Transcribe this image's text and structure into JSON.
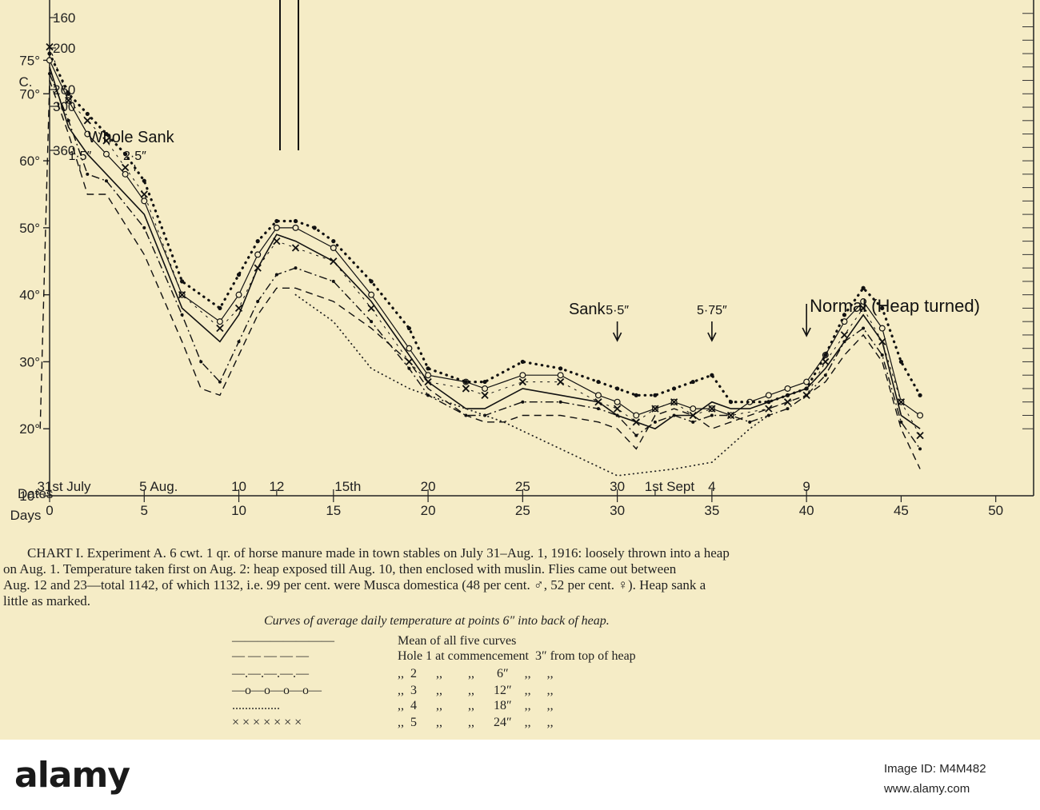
{
  "chart_data": {
    "type": "line",
    "x_label": "Days",
    "y_label_top": "C.",
    "xlim": [
      0,
      52
    ],
    "ylim": [
      10,
      84
    ],
    "x_ticks": [
      0,
      5,
      10,
      15,
      20,
      25,
      30,
      35,
      40,
      45,
      50
    ],
    "y_ticks": [
      {
        "value": 20,
        "label": "20°"
      },
      {
        "value": 30,
        "label": "30°"
      },
      {
        "value": 40,
        "label": "40°"
      },
      {
        "value": 50,
        "label": "50°"
      },
      {
        "value": 60,
        "label": "60°"
      },
      {
        "value": 70,
        "label": "70°"
      },
      {
        "value": 75,
        "label": "75°"
      },
      {
        "value": 10,
        "label": "10°"
      }
    ],
    "secondary_scale": [
      "160",
      "200",
      "260",
      "300",
      "360"
    ],
    "date_row_label": "Dates",
    "date_ticks": [
      {
        "day": 0,
        "label": "31st July"
      },
      {
        "day": 5,
        "label": "5 Aug."
      },
      {
        "day": 10,
        "label": "10"
      },
      {
        "day": 12,
        "label": "12"
      },
      {
        "day": 15,
        "label": "15th"
      },
      {
        "day": 20,
        "label": "20"
      },
      {
        "day": 25,
        "label": "25"
      },
      {
        "day": 30,
        "label": "30"
      },
      {
        "day": 32,
        "label": "1st Sept"
      },
      {
        "day": 35,
        "label": "4"
      },
      {
        "day": 40,
        "label": "9"
      }
    ],
    "annotations": [
      {
        "text": "Whole Sank",
        "day": 4.3
      },
      {
        "text": "1·5″",
        "day": 1.6
      },
      {
        "text": "2·5″",
        "day": 4.5
      },
      {
        "text": "Sank",
        "day": 28.4
      },
      {
        "text": "5·5″",
        "day": 30
      },
      {
        "text": "5·75″",
        "day": 35
      },
      {
        "text": "Normal (Heap turned)",
        "day": 41.5
      }
    ],
    "series": [
      {
        "name": "Mean of all five curves",
        "style": "solid",
        "x": [
          0,
          1,
          2,
          3,
          5,
          7,
          9,
          10,
          11,
          12,
          13,
          15,
          17,
          19,
          20,
          22,
          23,
          25,
          27,
          29,
          30,
          31,
          32,
          33,
          34,
          35,
          36,
          37,
          38,
          39,
          40,
          41,
          42,
          43,
          44,
          45,
          46
        ],
        "y": [
          74,
          65,
          61,
          58,
          52,
          38,
          33,
          37,
          44,
          49,
          48,
          45,
          39,
          31,
          27,
          23,
          23,
          26,
          25,
          24,
          22,
          21,
          20,
          22,
          22,
          24,
          23,
          23,
          24,
          25,
          26,
          29,
          33,
          37,
          33,
          22,
          20
        ]
      },
      {
        "name": "Hole 1 at commencement 3″ from top of heap",
        "style": "dashed",
        "x": [
          -0.5,
          0,
          1,
          2,
          3,
          5,
          7,
          8,
          9,
          10,
          11,
          12,
          13,
          15,
          17,
          19,
          20,
          21,
          22,
          23,
          24,
          25,
          27,
          29,
          30,
          31,
          32,
          33,
          34,
          35,
          36,
          37,
          38,
          39,
          40,
          41,
          42,
          43,
          44,
          45,
          46
        ],
        "y": [
          20,
          72,
          64,
          55,
          55,
          46,
          33,
          26,
          25,
          31,
          37,
          41,
          41,
          39,
          35,
          30,
          26,
          24,
          22,
          21,
          21,
          22,
          22,
          21,
          20,
          17,
          22,
          23,
          22,
          20,
          21,
          22,
          23,
          24,
          25,
          27,
          31,
          34,
          30,
          20,
          14
        ]
      },
      {
        "name": "Hole 2 at commencement 6″ from top of heap",
        "style": "dashdot",
        "x": [
          0,
          1,
          2,
          3,
          5,
          7,
          8,
          9,
          10,
          11,
          12,
          13,
          15,
          17,
          19,
          20,
          22,
          23,
          25,
          27,
          29,
          30,
          31,
          32,
          33,
          34,
          35,
          36,
          37,
          38,
          39,
          40,
          41,
          42,
          43,
          44,
          45,
          46
        ],
        "y": [
          73,
          66,
          58,
          57,
          50,
          37,
          30,
          27,
          33,
          39,
          43,
          44,
          42,
          36,
          29,
          25,
          22,
          22,
          24,
          24,
          23,
          22,
          19,
          21,
          22,
          21,
          22,
          22,
          21,
          22,
          23,
          25,
          28,
          33,
          35,
          31,
          21,
          17
        ]
      },
      {
        "name": "Hole 3 at commencement 12″ from top of heap",
        "style": "circles",
        "x": [
          0,
          1,
          2,
          3,
          4,
          5,
          7,
          9,
          10,
          11,
          12,
          13,
          15,
          17,
          19,
          20,
          22,
          23,
          25,
          27,
          29,
          30,
          31,
          32,
          33,
          34,
          35,
          36,
          37,
          38,
          39,
          40,
          41,
          42,
          43,
          44,
          45,
          46
        ],
        "y": [
          75,
          69,
          64,
          61,
          58,
          54,
          40,
          36,
          40,
          46,
          50,
          50,
          47,
          40,
          32,
          28,
          27,
          26,
          28,
          28,
          25,
          24,
          22,
          23,
          24,
          23,
          23,
          22,
          24,
          25,
          26,
          27,
          31,
          36,
          39,
          35,
          24,
          22
        ]
      },
      {
        "name": "Hole 4 at commencement 18″ from top of heap",
        "style": "dotted",
        "x": [
          0,
          1,
          2,
          3,
          4,
          5,
          7,
          9,
          10,
          11,
          12,
          13,
          14,
          15,
          17,
          19,
          20,
          22,
          23,
          25,
          27,
          29,
          30,
          31,
          32,
          33,
          34,
          35,
          36,
          38,
          39,
          40,
          41,
          42,
          43,
          44,
          45,
          46
        ],
        "y": [
          76,
          70,
          67,
          64,
          61,
          57,
          42,
          38,
          43,
          48,
          51,
          51,
          50,
          48,
          42,
          35,
          29,
          27,
          27,
          30,
          29,
          27,
          26,
          25,
          25,
          26,
          27,
          28,
          24,
          24,
          25,
          26,
          31,
          37,
          41,
          38,
          30,
          25
        ]
      },
      {
        "name": "Hole 5 at commencement 24″ from top of heap",
        "style": "crosses",
        "x": [
          0,
          1,
          2,
          3,
          4,
          5,
          7,
          9,
          10,
          11,
          12,
          13,
          15,
          17,
          19,
          20,
          22,
          23,
          25,
          27,
          29,
          30,
          31,
          32,
          33,
          34,
          35,
          36,
          38,
          39,
          40,
          41,
          42,
          43,
          44,
          45,
          46
        ],
        "y": [
          77,
          69,
          66,
          63,
          59,
          55,
          40,
          35,
          38,
          44,
          48,
          47,
          45,
          38,
          30,
          27,
          26,
          25,
          27,
          27,
          24,
          23,
          21,
          23,
          24,
          22,
          23,
          22,
          23,
          24,
          25,
          30,
          34,
          38,
          33,
          24,
          19
        ]
      },
      {
        "name": "Sparse dotted extension",
        "style": "finedots",
        "x": [
          13,
          15,
          17,
          19,
          21,
          24,
          27,
          30,
          33,
          35,
          37,
          38
        ],
        "y": [
          40,
          36,
          29,
          26,
          24,
          21,
          17,
          13,
          14,
          15,
          20,
          22
        ]
      }
    ]
  },
  "caption": {
    "lines": [
      "CHART I. Experiment A. 6 cwt. 1 qr. of horse manure made in town stables on July 31–Aug. 1, 1916: loosely thrown into a heap",
      "on Aug. 1. Temperature taken first on Aug. 2: heap exposed till Aug. 10, then enclosed with muslin. Flies came out between",
      "Aug. 12 and 23—total 1142, of which 1132, i.e. 99 per cent. were Musca domestica (48 per cent. ♂, 52 per cent. ♀). Heap sank a",
      "little as marked."
    ]
  },
  "legend": {
    "title": "Curves of average daily temperature at points 6″ into back of heap.",
    "rows": [
      {
        "symbol": "————————",
        "text": "Mean of all five curves"
      },
      {
        "symbol": "— — — — —",
        "text": "Hole 1 at commencement  3″ from top of heap"
      },
      {
        "symbol": "—.—.—.—.—",
        "text": ",,  2      ,,        ,,       6″     ,,     ,,"
      },
      {
        "symbol": "—o—o—o—o—",
        "text": ",,  3      ,,        ,,      12″    ,,     ,,"
      },
      {
        "symbol": "...............",
        "text": ",,  4      ,,        ,,      18″    ,,     ,,"
      },
      {
        "symbol": "× × × × × × ×",
        "text": ",,  5      ,,        ,,      24″    ,,     ,,"
      }
    ]
  },
  "watermark": {
    "logo": "alamy",
    "line": "Image ID: M4M482",
    "url": "www.alamy.com"
  }
}
